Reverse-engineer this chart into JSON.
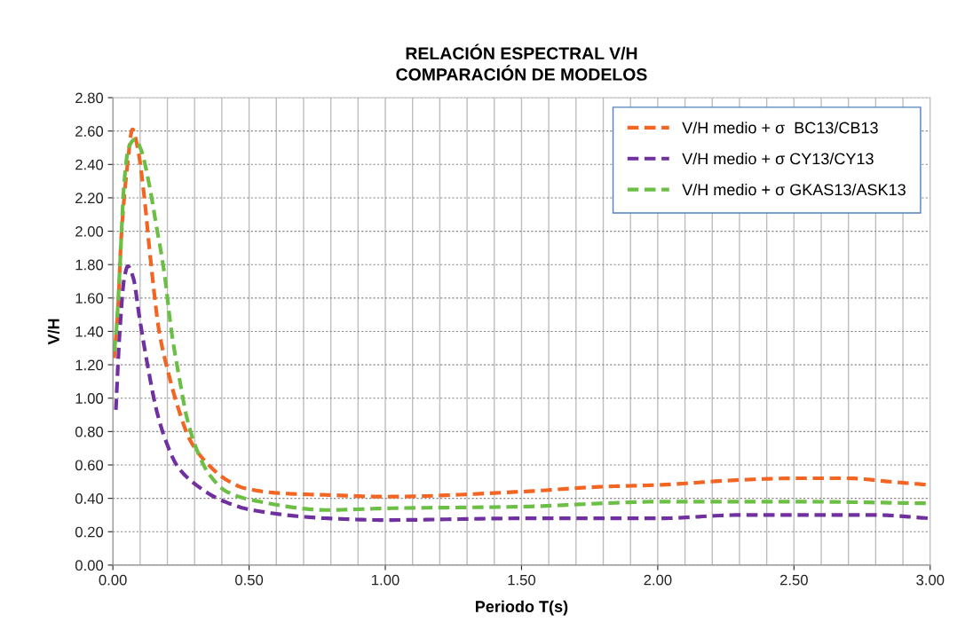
{
  "chart_data": {
    "type": "line",
    "title": "RELACIÓN ESPECTRAL V/H\nCOMPARACIÓN DE MODELOS",
    "xlabel": "Periodo T(s)",
    "ylabel": "V/H",
    "xlim": [
      0,
      3
    ],
    "ylim": [
      0,
      2.8
    ],
    "xticks": [
      {
        "value": 0,
        "label": "0.00"
      },
      {
        "value": 0.1,
        "label": null
      },
      {
        "value": 0.2,
        "label": null
      },
      {
        "value": 0.3,
        "label": null
      },
      {
        "value": 0.4,
        "label": null
      },
      {
        "value": 0.5,
        "label": "0.50"
      },
      {
        "value": 0.6,
        "label": null
      },
      {
        "value": 0.7,
        "label": null
      },
      {
        "value": 0.8,
        "label": null
      },
      {
        "value": 0.9,
        "label": null
      },
      {
        "value": 1.0,
        "label": "1.00"
      },
      {
        "value": 1.1,
        "label": null
      },
      {
        "value": 1.2,
        "label": null
      },
      {
        "value": 1.3,
        "label": null
      },
      {
        "value": 1.4,
        "label": null
      },
      {
        "value": 1.5,
        "label": "1.50"
      },
      {
        "value": 1.6,
        "label": null
      },
      {
        "value": 1.7,
        "label": null
      },
      {
        "value": 1.8,
        "label": null
      },
      {
        "value": 1.9,
        "label": null
      },
      {
        "value": 2.0,
        "label": "2.00"
      },
      {
        "value": 2.1,
        "label": null
      },
      {
        "value": 2.2,
        "label": null
      },
      {
        "value": 2.3,
        "label": null
      },
      {
        "value": 2.4,
        "label": null
      },
      {
        "value": 2.5,
        "label": "2.50"
      },
      {
        "value": 2.6,
        "label": null
      },
      {
        "value": 2.7,
        "label": null
      },
      {
        "value": 2.8,
        "label": null
      },
      {
        "value": 2.9,
        "label": null
      },
      {
        "value": 3.0,
        "label": "3.00"
      }
    ],
    "yticks": [
      {
        "value": 0,
        "label": "0.00"
      },
      {
        "value": 0.2,
        "label": "0.20"
      },
      {
        "value": 0.4,
        "label": "0.40"
      },
      {
        "value": 0.6,
        "label": "0.60"
      },
      {
        "value": 0.8,
        "label": "0.80"
      },
      {
        "value": 1.0,
        "label": "1.00"
      },
      {
        "value": 1.2,
        "label": "1.20"
      },
      {
        "value": 1.4,
        "label": "1.40"
      },
      {
        "value": 1.6,
        "label": "1.60"
      },
      {
        "value": 1.8,
        "label": "1.80"
      },
      {
        "value": 2.0,
        "label": "2.00"
      },
      {
        "value": 2.2,
        "label": "2.20"
      },
      {
        "value": 2.4,
        "label": "2.40"
      },
      {
        "value": 2.6,
        "label": "2.60"
      },
      {
        "value": 2.8,
        "label": "2.80"
      }
    ],
    "grid": true,
    "legend": "top right",
    "line_style": "dashed",
    "marker": "none",
    "series": [
      {
        "name": "V/H medio + σ  BC13/CB13",
        "color": "#f26522",
        "x": [
          0.005,
          0.02,
          0.03,
          0.053,
          0.072,
          0.092,
          0.115,
          0.137,
          0.171,
          0.204,
          0.238,
          0.283,
          0.34,
          0.418,
          0.485,
          0.62,
          0.79,
          1.0,
          1.5,
          1.8,
          2.0,
          2.3,
          2.5,
          2.7,
          2.85,
          3.0
        ],
        "values": [
          1.24,
          1.57,
          1.94,
          2.39,
          2.61,
          2.49,
          2.21,
          1.85,
          1.39,
          1.15,
          0.95,
          0.75,
          0.62,
          0.51,
          0.46,
          0.43,
          0.42,
          0.41,
          0.44,
          0.47,
          0.48,
          0.51,
          0.52,
          0.52,
          0.5,
          0.48
        ]
      },
      {
        "name": "V/H medio + σ CY13/CY13",
        "color": "#7030a0",
        "x": [
          0.011,
          0.025,
          0.042,
          0.055,
          0.075,
          0.098,
          0.126,
          0.16,
          0.193,
          0.238,
          0.306,
          0.396,
          0.51,
          0.79,
          1.0,
          1.5,
          2.0,
          2.3,
          2.6,
          2.8,
          3.0
        ],
        "values": [
          0.93,
          1.39,
          1.72,
          1.79,
          1.72,
          1.48,
          1.21,
          0.93,
          0.75,
          0.59,
          0.48,
          0.39,
          0.33,
          0.28,
          0.27,
          0.28,
          0.28,
          0.3,
          0.3,
          0.3,
          0.28
        ]
      },
      {
        "name": "V/H medio + σ GKAS13/ASK13",
        "color": "#6cbf45",
        "x": [
          0.005,
          0.013,
          0.025,
          0.042,
          0.058,
          0.081,
          0.103,
          0.131,
          0.16,
          0.188,
          0.216,
          0.244,
          0.272,
          0.306,
          0.351,
          0.418,
          0.51,
          0.79,
          1.0,
          1.5,
          1.8,
          2.0,
          2.5,
          3.0
        ],
        "values": [
          1.28,
          1.41,
          1.76,
          2.3,
          2.5,
          2.55,
          2.49,
          2.3,
          2.03,
          1.76,
          1.39,
          1.12,
          0.88,
          0.7,
          0.55,
          0.44,
          0.39,
          0.33,
          0.34,
          0.35,
          0.37,
          0.38,
          0.38,
          0.37
        ]
      }
    ]
  }
}
